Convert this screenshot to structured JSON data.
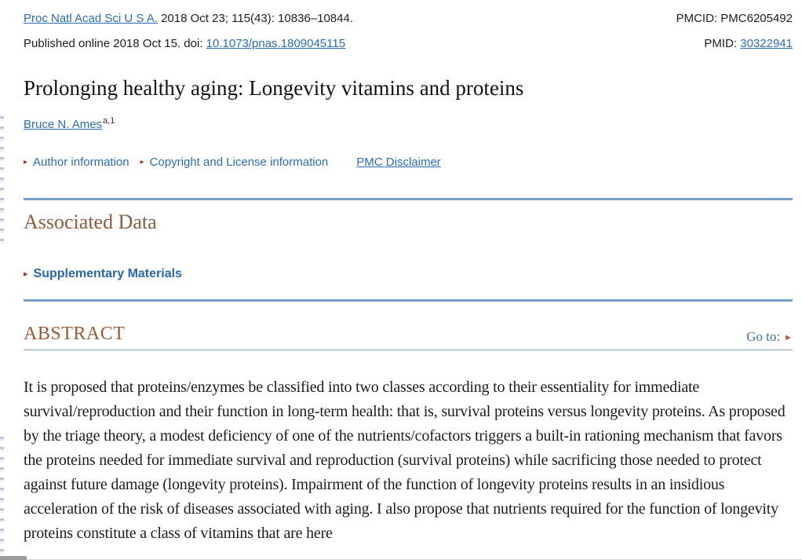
{
  "header": {
    "journal_link": "Proc Natl Acad Sci U S A.",
    "citation_rest": " 2018 Oct 23; 115(43): 10836–10844.",
    "published_prefix": "Published online 2018 Oct 15. doi: ",
    "doi_link": "10.1073/pnas.1809045115",
    "pmcid_label": "PMCID: ",
    "pmcid_value": "PMC6205492",
    "pmid_label": "PMID: ",
    "pmid_link": "30322941"
  },
  "article": {
    "title": "Prolonging healthy aging: Longevity vitamins and proteins",
    "author": "Bruce N. Ames",
    "author_sup": "a,1",
    "links": {
      "author_info": "Author information",
      "copyright": "Copyright and License information",
      "disclaimer": "PMC Disclaimer"
    }
  },
  "associated_data": {
    "heading": "Associated Data",
    "supplementary": "Supplementary Materials"
  },
  "abstract": {
    "heading": "ABSTRACT",
    "goto_label": "Go to:",
    "text": "It is proposed that proteins/enzymes be classified into two classes according to their essentiality for immediate survival/reproduction and their function in long-term health: that is, survival proteins versus longevity proteins. As proposed by the triage theory, a modest deficiency of one of the nutrients/cofactors triggers a built-in rationing mechanism that favors the proteins needed for immediate survival and reproduction (survival proteins) while sacrificing those needed to protect against future damage (longevity proteins). Impairment of the function of longevity proteins results in an insidious acceleration of the risk of diseases associated with aging. I also propose that nutrients required for the function of longevity proteins constitute a class of vitamins that are here"
  },
  "icons": {
    "expand_arrow": "▸",
    "goto_arrow": "►"
  },
  "colors": {
    "link_blue": "#2a6cb5",
    "heading_brown": "#8e5a3e",
    "rule_blue": "#76a0ca",
    "arrow_red": "#9e3b28",
    "goto_arrow_orange": "#c0562f"
  }
}
